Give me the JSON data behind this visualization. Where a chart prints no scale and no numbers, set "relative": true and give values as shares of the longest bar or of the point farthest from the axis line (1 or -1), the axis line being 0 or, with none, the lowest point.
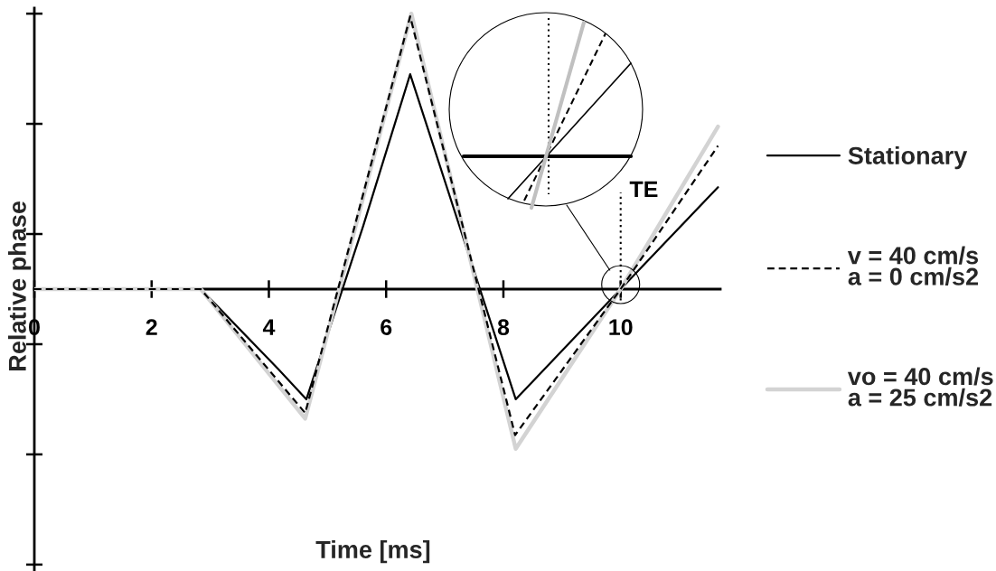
{
  "chart_data": {
    "type": "line",
    "relative": true,
    "xlabel": "Time [ms]",
    "ylabel": "Relative phase",
    "xlim": [
      0,
      11.7
    ],
    "xticks": [
      0,
      2,
      4,
      6,
      8,
      10
    ],
    "legend": "right",
    "series": [
      {
        "name": "Stationary",
        "color": "#000000",
        "line_style": "solid",
        "x": [
          0,
          2.84,
          4.16,
          4.64,
          5.61,
          6.41,
          8.21,
          10.0,
          11.66
        ],
        "values": [
          0,
          0,
          -0.29,
          -0.4,
          0.23,
          0.78,
          -0.4,
          0.0,
          0.37
        ]
      },
      {
        "name": "v = 40 cm/s\na = 0 cm/s2",
        "color": "#000000",
        "line_style": "dashed",
        "x": [
          0,
          2.84,
          4.62,
          6.41,
          8.2,
          10.0,
          11.66
        ],
        "values": [
          0,
          0,
          -0.45,
          0.99,
          -0.53,
          0.0,
          0.52
        ]
      },
      {
        "name": "vo = 40 cm/s\na = 25 cm/s2",
        "color": "#d3d3d3",
        "line_style": "solid",
        "x": [
          0,
          2.84,
          4.62,
          6.43,
          8.21,
          10.0,
          11.66
        ],
        "values": [
          0,
          0,
          -0.47,
          1.0,
          -0.58,
          0.0,
          0.59
        ]
      }
    ],
    "ref_lines": [
      {
        "axis": "x",
        "value": 10,
        "label": "TE",
        "line_style": "dotted",
        "color": "#000000"
      }
    ]
  }
}
